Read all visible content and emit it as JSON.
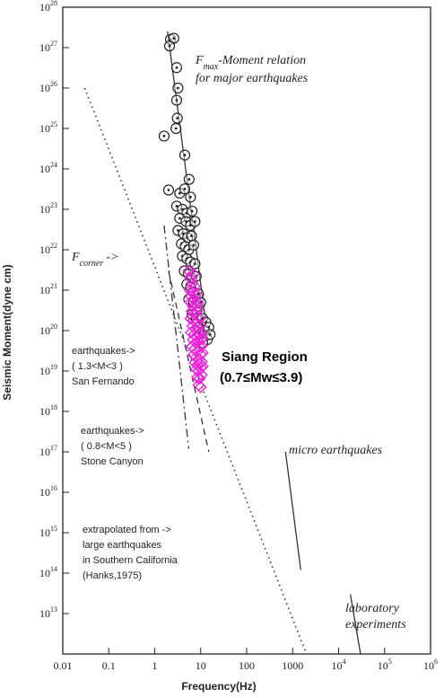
{
  "chart_data": {
    "type": "scatter",
    "xlabel": "Frequency(Hz)",
    "ylabel": "Seismic Moment(dyne cm)",
    "x_scale": "log",
    "y_scale": "log",
    "xlim": [
      0.01,
      1000000
    ],
    "ylim": [
      1000000000000.0,
      1e+28
    ],
    "x_ticks": [
      "0.01",
      "0.1",
      "1",
      "10",
      "100",
      "1000",
      "10",
      "10",
      "10"
    ],
    "x_tick_exponents": [
      "",
      "",
      "",
      "",
      "",
      "",
      "4",
      "5",
      "6"
    ],
    "y_tick_base": "10",
    "y_tick_exponents": [
      "13",
      "14",
      "15",
      "16",
      "17",
      "18",
      "19",
      "20",
      "21",
      "22",
      "23",
      "24",
      "25",
      "26",
      "27",
      "28"
    ],
    "series": [
      {
        "marker": "circle-with-dot",
        "color": "#222222",
        "points": [
          [
            2.2,
            1.6e+27
          ],
          [
            2.6,
            1.7e+27
          ],
          [
            2.1,
            1.1e+27
          ],
          [
            3.0,
            3.2e+26
          ],
          [
            3.2,
            1e+26
          ],
          [
            3.0,
            5e+25
          ],
          [
            3.1,
            1.8e+25
          ],
          [
            2.9,
            1e+25
          ],
          [
            1.6,
            6.5e+24
          ],
          [
            4.5,
            2.2e+24
          ],
          [
            5.6,
            5.5e+23
          ],
          [
            2.0,
            3e+23
          ],
          [
            3.5,
            2.5e+23
          ],
          [
            4.5,
            3.2e+23
          ],
          [
            6.0,
            2e+23
          ],
          [
            3.0,
            1.2e+23
          ],
          [
            4.0,
            1e+23
          ],
          [
            5.0,
            8e+22
          ],
          [
            6.5,
            9e+22
          ],
          [
            3.5,
            6e+22
          ],
          [
            4.8,
            5e+22
          ],
          [
            6.0,
            4e+22
          ],
          [
            7.5,
            5e+22
          ],
          [
            3.2,
            3e+22
          ],
          [
            4.2,
            2.5e+22
          ],
          [
            5.2,
            2e+22
          ],
          [
            6.3,
            2.2e+22
          ],
          [
            3.8,
            1.4e+22
          ],
          [
            4.6,
            1.2e+22
          ],
          [
            5.5,
            1e+22
          ],
          [
            7.0,
            1.3e+22
          ],
          [
            4.0,
            7e+21
          ],
          [
            5.0,
            6e+21
          ],
          [
            6.0,
            5e+21
          ],
          [
            7.5,
            4.5e+21
          ],
          [
            4.4,
            3e+21
          ],
          [
            5.4,
            2.5e+21
          ],
          [
            6.5,
            2e+21
          ],
          [
            8.0,
            2.2e+21
          ],
          [
            5.0,
            1.4e+21
          ],
          [
            6.0,
            1.2e+21
          ],
          [
            7.0,
            9e+20
          ],
          [
            9.0,
            8e+20
          ],
          [
            5.5,
            6e+20
          ],
          [
            7.0,
            5e+20
          ],
          [
            8.5,
            4e+20
          ],
          [
            10.0,
            5e+20
          ],
          [
            6.5,
            2.5e+20
          ],
          [
            8.0,
            2e+20
          ],
          [
            11.0,
            2e+20
          ],
          [
            13.0,
            1.6e+20
          ],
          [
            9.0,
            1.2e+20
          ],
          [
            12.0,
            1e+20
          ],
          [
            15.0,
            1.2e+20
          ],
          [
            14.0,
            6e+19
          ],
          [
            11.0,
            5e+19
          ],
          [
            16.0,
            8e+19
          ]
        ]
      },
      {
        "name": "Siang Region",
        "marker": "diamond",
        "color": "#ee22dd",
        "points": [
          [
            5.5,
            3e+21
          ],
          [
            6.0,
            2e+21
          ],
          [
            7.0,
            2.5e+21
          ],
          [
            6.5,
            1.5e+21
          ],
          [
            5.8,
            1e+21
          ],
          [
            6.8,
            9e+20
          ],
          [
            7.5,
            1.2e+21
          ],
          [
            6.2,
            7e+20
          ],
          [
            7.2,
            6e+20
          ],
          [
            8.0,
            8e+20
          ],
          [
            6.0,
            5e+20
          ],
          [
            6.8,
            4e+20
          ],
          [
            7.8,
            4.5e+20
          ],
          [
            8.5,
            5e+20
          ],
          [
            6.4,
            3e+20
          ],
          [
            7.2,
            2.6e+20
          ],
          [
            8.2,
            3e+20
          ],
          [
            9.0,
            3.5e+20
          ],
          [
            6.0,
            2e+20
          ],
          [
            7.0,
            1.8e+20
          ],
          [
            8.0,
            1.6e+20
          ],
          [
            9.5,
            2e+20
          ],
          [
            6.6,
            1.3e+20
          ],
          [
            7.6,
            1.1e+20
          ],
          [
            8.6,
            1.2e+20
          ],
          [
            10.0,
            1.4e+20
          ],
          [
            6.2,
            9e+19
          ],
          [
            7.2,
            8e+19
          ],
          [
            8.2,
            7e+19
          ],
          [
            9.2,
            8.5e+19
          ],
          [
            10.5,
            9e+19
          ],
          [
            6.8,
            6e+19
          ],
          [
            7.8,
            5e+19
          ],
          [
            8.8,
            5.5e+19
          ],
          [
            10.0,
            6e+19
          ],
          [
            11.0,
            6.5e+19
          ],
          [
            6.4,
            4e+19
          ],
          [
            7.4,
            3.5e+19
          ],
          [
            8.4,
            3e+19
          ],
          [
            9.4,
            4e+19
          ],
          [
            10.5,
            4.2e+19
          ],
          [
            7.0,
            2.5e+19
          ],
          [
            8.0,
            2.2e+19
          ],
          [
            9.0,
            2e+19
          ],
          [
            10.0,
            2.6e+19
          ],
          [
            11.0,
            2.8e+19
          ],
          [
            7.5,
            1.6e+19
          ],
          [
            8.5,
            1.4e+19
          ],
          [
            9.5,
            1.5e+19
          ],
          [
            10.5,
            1.7e+19
          ],
          [
            8.0,
            1.1e+19
          ],
          [
            9.0,
            1e+19
          ],
          [
            10.0,
            1.2e+19
          ],
          [
            11.0,
            1.3e+19
          ],
          [
            8.5,
            7e+18
          ],
          [
            9.5,
            6.5e+18
          ],
          [
            10.5,
            8e+18
          ],
          [
            9.0,
            4.5e+18
          ],
          [
            10.0,
            4e+18
          ]
        ]
      }
    ],
    "lines": [
      {
        "style": "solid",
        "from": [
          1.9,
          2.5e+27
        ],
        "to": [
          13.0,
          1.5e+20
        ]
      },
      {
        "style": "dotted",
        "from": [
          0.03,
          1e+26
        ],
        "to": [
          2000,
          1000000000000.0
        ]
      },
      {
        "style": "dash-dot",
        "from": [
          1.6,
          4e+22
        ],
        "to": [
          5.5,
          1.2e+17
        ]
      },
      {
        "style": "dashed",
        "from": [
          2.0,
          3e+21
        ],
        "to": [
          15.0,
          1e+17
        ]
      },
      {
        "style": "solid",
        "from": [
          700,
          1e+17
        ],
        "to": [
          1500,
          120000000000000.0
        ]
      },
      {
        "style": "solid",
        "from": [
          18000,
          30000000000000.0
        ],
        "to": [
          30000,
          1000000000000.0
        ]
      }
    ],
    "annotations": [
      {
        "text_1": "F",
        "sub_1": "max",
        "text_2": "-Moment relation"
      },
      {
        "text": "for major earthquakes"
      },
      {
        "text": "F",
        "sub": "corner",
        "arrow": "->"
      },
      {
        "text": "earthquakes->"
      },
      {
        "text": "( 1.3<M<3 )"
      },
      {
        "text": "San Fernando"
      },
      {
        "text": "earthquakes->"
      },
      {
        "text": "( 0.8<M<5 )"
      },
      {
        "text": "Stone Canyon"
      },
      {
        "text": "extrapolated from ->"
      },
      {
        "text": "large earthquakes"
      },
      {
        "text": "in Southern California"
      },
      {
        "text": "(Hanks,1975)"
      },
      {
        "text": "micro earthquakes"
      },
      {
        "text": "laboratory"
      },
      {
        "text": "experiments"
      },
      {
        "text": "Siang Region"
      },
      {
        "text": "(0.7≤Mw≤3.9)"
      }
    ],
    "grid": false,
    "legend": "none"
  }
}
